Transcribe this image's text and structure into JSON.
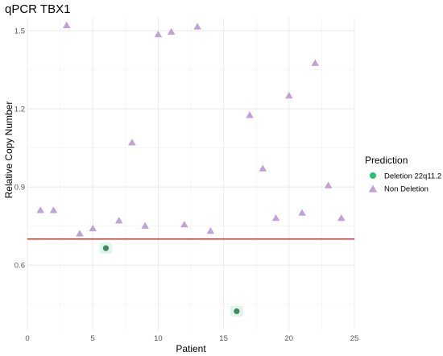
{
  "chart_data": {
    "type": "scatter",
    "title": "qPCR TBX1",
    "xlabel": "Patient",
    "ylabel": "Relative Copy Number",
    "xlim": [
      0,
      25
    ],
    "ylim": [
      0.35,
      1.55
    ],
    "x_ticks": [
      0,
      5,
      10,
      15,
      20,
      25
    ],
    "y_ticks": [
      0.6,
      0.9,
      1.2,
      1.5
    ],
    "y_tick_labels": [
      "0.6",
      "0.9",
      "1.2",
      "1.5"
    ],
    "grid": true,
    "legend": {
      "title": "Prediction",
      "position": "right"
    },
    "threshold_line": {
      "y": 0.7,
      "color": "#cc2222"
    },
    "series": [
      {
        "name": "Deletion 22q11.2",
        "marker": "circle",
        "color": "#2fbf71",
        "points": [
          {
            "x": 6,
            "y": 0.665
          },
          {
            "x": 16,
            "y": 0.423
          }
        ]
      },
      {
        "name": "Non Deletion",
        "marker": "triangle",
        "color": "#bfa2d8",
        "points": [
          {
            "x": 1,
            "y": 0.81
          },
          {
            "x": 2,
            "y": 0.81
          },
          {
            "x": 3,
            "y": 1.52
          },
          {
            "x": 4,
            "y": 0.72
          },
          {
            "x": 5,
            "y": 0.74
          },
          {
            "x": 7,
            "y": 0.77
          },
          {
            "x": 8,
            "y": 1.07
          },
          {
            "x": 9,
            "y": 0.75
          },
          {
            "x": 10,
            "y": 1.485
          },
          {
            "x": 11,
            "y": 1.495
          },
          {
            "x": 12,
            "y": 0.755
          },
          {
            "x": 13,
            "y": 1.515
          },
          {
            "x": 14,
            "y": 0.73
          },
          {
            "x": 17,
            "y": 1.175
          },
          {
            "x": 18,
            "y": 0.97
          },
          {
            "x": 19,
            "y": 0.78
          },
          {
            "x": 20,
            "y": 1.25
          },
          {
            "x": 21,
            "y": 0.8
          },
          {
            "x": 22,
            "y": 1.375
          },
          {
            "x": 23,
            "y": 0.905
          },
          {
            "x": 24,
            "y": 0.78
          }
        ]
      }
    ]
  }
}
